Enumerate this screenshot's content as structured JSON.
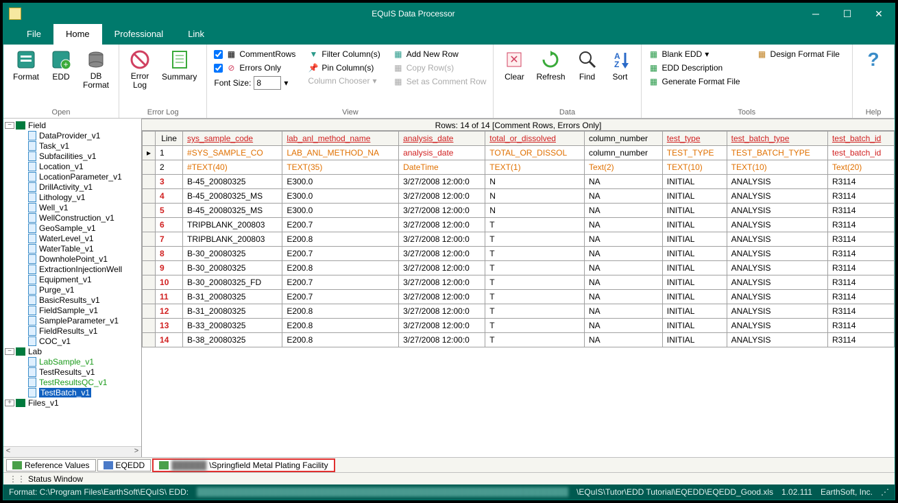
{
  "window": {
    "title": "EQuIS Data Processor"
  },
  "menubar": {
    "tabs": [
      "File",
      "Home",
      "Professional",
      "Link"
    ],
    "active_index": 1
  },
  "ribbon": {
    "open": {
      "label": "Open",
      "items": {
        "format": "Format",
        "edd": "EDD",
        "dbformat": "DB\nFormat"
      }
    },
    "errorlog": {
      "label": "Error Log",
      "items": {
        "errorlog": "Error\nLog",
        "summary": "Summary"
      }
    },
    "view": {
      "label": "View",
      "comment_rows": "CommentRows",
      "errors_only": "Errors Only",
      "font_size_label": "Font Size:",
      "font_size_value": "8",
      "filter_columns": "Filter Column(s)",
      "pin_columns": "Pin Column(s)",
      "column_chooser": "Column Chooser",
      "add_new_row": "Add New Row",
      "copy_rows": "Copy Row(s)",
      "set_comment_row": "Set as Comment Row"
    },
    "data": {
      "label": "Data",
      "clear": "Clear",
      "refresh": "Refresh",
      "find": "Find",
      "sort": "Sort"
    },
    "tools": {
      "label": "Tools",
      "blank_edd": "Blank EDD",
      "edd_description": "EDD Description",
      "generate_format": "Generate Format File",
      "design_format": "Design Format File"
    },
    "help": {
      "label": "Help"
    }
  },
  "tree": {
    "field_label": "Field",
    "field_items": [
      "DataProvider_v1",
      "Task_v1",
      "Subfacilities_v1",
      "Location_v1",
      "LocationParameter_v1",
      "DrillActivity_v1",
      "Lithology_v1",
      "Well_v1",
      "WellConstruction_v1",
      "GeoSample_v1",
      "WaterLevel_v1",
      "WaterTable_v1",
      "DownholePoint_v1",
      "ExtractionInjectionWell",
      "Equipment_v1",
      "Purge_v1",
      "BasicResults_v1",
      "FieldSample_v1",
      "SampleParameter_v1",
      "FieldResults_v1",
      "COC_v1"
    ],
    "lab_label": "Lab",
    "lab_items": [
      {
        "name": "LabSample_v1",
        "green": true
      },
      {
        "name": "TestResults_v1",
        "green": false
      },
      {
        "name": "TestResultsQC_v1",
        "green": true
      },
      {
        "name": "TestBatch_v1",
        "green": true,
        "selected": true
      }
    ],
    "files_label": "Files_v1"
  },
  "rows_header": "Rows: 14 of 14   [Comment Rows, Errors Only]",
  "grid": {
    "columns": [
      {
        "key": "line",
        "label": "Line",
        "red": false
      },
      {
        "key": "sys_sample_code",
        "label": "sys_sample_code",
        "red": true
      },
      {
        "key": "lab_anl_method_name",
        "label": "lab_anl_method_name",
        "red": true
      },
      {
        "key": "analysis_date",
        "label": "analysis_date",
        "red": true
      },
      {
        "key": "total_or_dissolved",
        "label": "total_or_dissolved",
        "red": true
      },
      {
        "key": "column_number",
        "label": "column_number",
        "red": false
      },
      {
        "key": "test_type",
        "label": "test_type",
        "red": true
      },
      {
        "key": "test_batch_type",
        "label": "test_batch_type",
        "red": true
      },
      {
        "key": "test_batch_id",
        "label": "test_batch_id",
        "red": true
      }
    ],
    "row1": [
      "1",
      "#SYS_SAMPLE_CO",
      "LAB_ANL_METHOD_NA",
      "analysis_date",
      "TOTAL_OR_DISSOL",
      "column_number",
      "TEST_TYPE",
      "TEST_BATCH_TYPE",
      "test_batch_id"
    ],
    "row2": [
      "2",
      "#TEXT(40)",
      "TEXT(35)",
      "DateTime",
      "TEXT(1)",
      "Text(2)",
      "TEXT(10)",
      "TEXT(10)",
      "Text(20)"
    ],
    "data_rows": [
      [
        "3",
        "B-45_20080325",
        "E300.0",
        "3/27/2008 12:00:0",
        "N",
        "NA",
        "INITIAL",
        "ANALYSIS",
        "R3114"
      ],
      [
        "4",
        "B-45_20080325_MS",
        "E300.0",
        "3/27/2008 12:00:0",
        "N",
        "NA",
        "INITIAL",
        "ANALYSIS",
        "R3114"
      ],
      [
        "5",
        "B-45_20080325_MS",
        "E300.0",
        "3/27/2008 12:00:0",
        "N",
        "NA",
        "INITIAL",
        "ANALYSIS",
        "R3114"
      ],
      [
        "6",
        "TRIPBLANK_200803",
        "E200.7",
        "3/27/2008 12:00:0",
        "T",
        "NA",
        "INITIAL",
        "ANALYSIS",
        "R3114"
      ],
      [
        "7",
        "TRIPBLANK_200803",
        "E200.8",
        "3/27/2008 12:00:0",
        "T",
        "NA",
        "INITIAL",
        "ANALYSIS",
        "R3114"
      ],
      [
        "8",
        "B-30_20080325",
        "E200.7",
        "3/27/2008 12:00:0",
        "T",
        "NA",
        "INITIAL",
        "ANALYSIS",
        "R3114"
      ],
      [
        "9",
        "B-30_20080325",
        "E200.8",
        "3/27/2008 12:00:0",
        "T",
        "NA",
        "INITIAL",
        "ANALYSIS",
        "R3114"
      ],
      [
        "10",
        "B-30_20080325_FD",
        "E200.7",
        "3/27/2008 12:00:0",
        "T",
        "NA",
        "INITIAL",
        "ANALYSIS",
        "R3114"
      ],
      [
        "11",
        "B-31_20080325",
        "E200.7",
        "3/27/2008 12:00:0",
        "T",
        "NA",
        "INITIAL",
        "ANALYSIS",
        "R3114"
      ],
      [
        "12",
        "B-31_20080325",
        "E200.8",
        "3/27/2008 12:00:0",
        "T",
        "NA",
        "INITIAL",
        "ANALYSIS",
        "R3114"
      ],
      [
        "13",
        "B-33_20080325",
        "E200.8",
        "3/27/2008 12:00:0",
        "T",
        "NA",
        "INITIAL",
        "ANALYSIS",
        "R3114"
      ],
      [
        "14",
        "B-38_20080325",
        "E200.8",
        "3/27/2008 12:00:0",
        "T",
        "NA",
        "INITIAL",
        "ANALYSIS",
        "R3114"
      ]
    ]
  },
  "bottom_tabs": {
    "ref_values": "Reference Values",
    "eqedd": "EQEDD",
    "facility": "\\Springfield Metal Plating Facility"
  },
  "status_window": "Status Window",
  "footer": {
    "format_path": "Format:  C:\\Program Files\\EarthSoft\\EQuIS\\  EDD:",
    "edd_path": "\\EQuIS\\Tutor\\EDD Tutorial\\EQEDD\\EQEDD_Good.xls",
    "version": "1.02.111",
    "company": "EarthSoft, Inc."
  }
}
